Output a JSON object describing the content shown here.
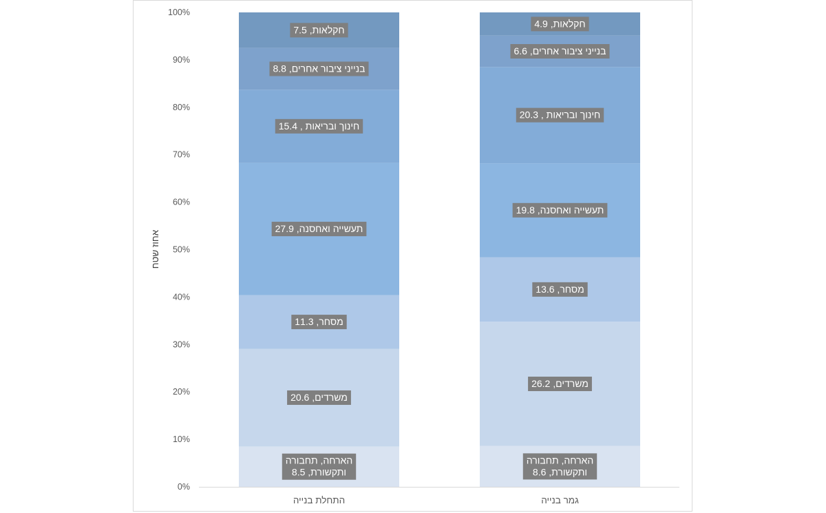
{
  "chart_data": {
    "type": "bar",
    "stacked": "percent",
    "ylabel": "אחוז שטח",
    "ylim": [
      0,
      100
    ],
    "y_ticks": [
      "0%",
      "10%",
      "20%",
      "30%",
      "40%",
      "50%",
      "60%",
      "70%",
      "80%",
      "90%",
      "100%"
    ],
    "categories": [
      "התחלת בנייה",
      "גמר בנייה"
    ],
    "series": [
      {
        "name": "הארחה, תחבורה ותקשורת",
        "values": [
          8.5,
          8.6
        ],
        "color": "#d9e3f1",
        "labels": [
          [
            "הארחה, תחבורה",
            "ותקשורת, 8.5"
          ],
          [
            "הארחה, תחבורה",
            "ותקשורת, 8.6"
          ]
        ]
      },
      {
        "name": "משרדים",
        "values": [
          20.6,
          26.2
        ],
        "color": "#c6d7ec",
        "labels": [
          [
            "משרדים, 20.6"
          ],
          [
            "משרדים, 26.2"
          ]
        ]
      },
      {
        "name": "מסחר",
        "values": [
          11.3,
          13.6
        ],
        "color": "#aec8e8",
        "labels": [
          [
            "מסחר, 11.3"
          ],
          [
            "מסחר, 13.6"
          ]
        ]
      },
      {
        "name": "תעשייה ואחסנה",
        "values": [
          27.9,
          19.8
        ],
        "color": "#8cb6e1",
        "labels": [
          [
            "תעשייה ואחסנה, 27.9"
          ],
          [
            "תעשייה ואחסנה, 19.8"
          ]
        ]
      },
      {
        "name": "חינוך ובריאות",
        "values": [
          15.4,
          20.3
        ],
        "color": "#83acd8",
        "labels": [
          [
            "חינוך ובריאות , 15.4"
          ],
          [
            "חינוך ובריאות , 20.3"
          ]
        ]
      },
      {
        "name": "בנייני ציבור אחרים",
        "values": [
          8.8,
          6.6
        ],
        "color": "#7ea2cc",
        "labels": [
          [
            "בנייני  ציבור אחרים, 8.8"
          ],
          [
            "בנייני  ציבור אחרים, 6.6"
          ]
        ]
      },
      {
        "name": "חקלאות",
        "values": [
          7.5,
          4.9
        ],
        "color": "#7399c0",
        "labels": [
          [
            "חקלאות, 7.5"
          ],
          [
            "חקלאות, 4.9"
          ]
        ]
      }
    ]
  }
}
